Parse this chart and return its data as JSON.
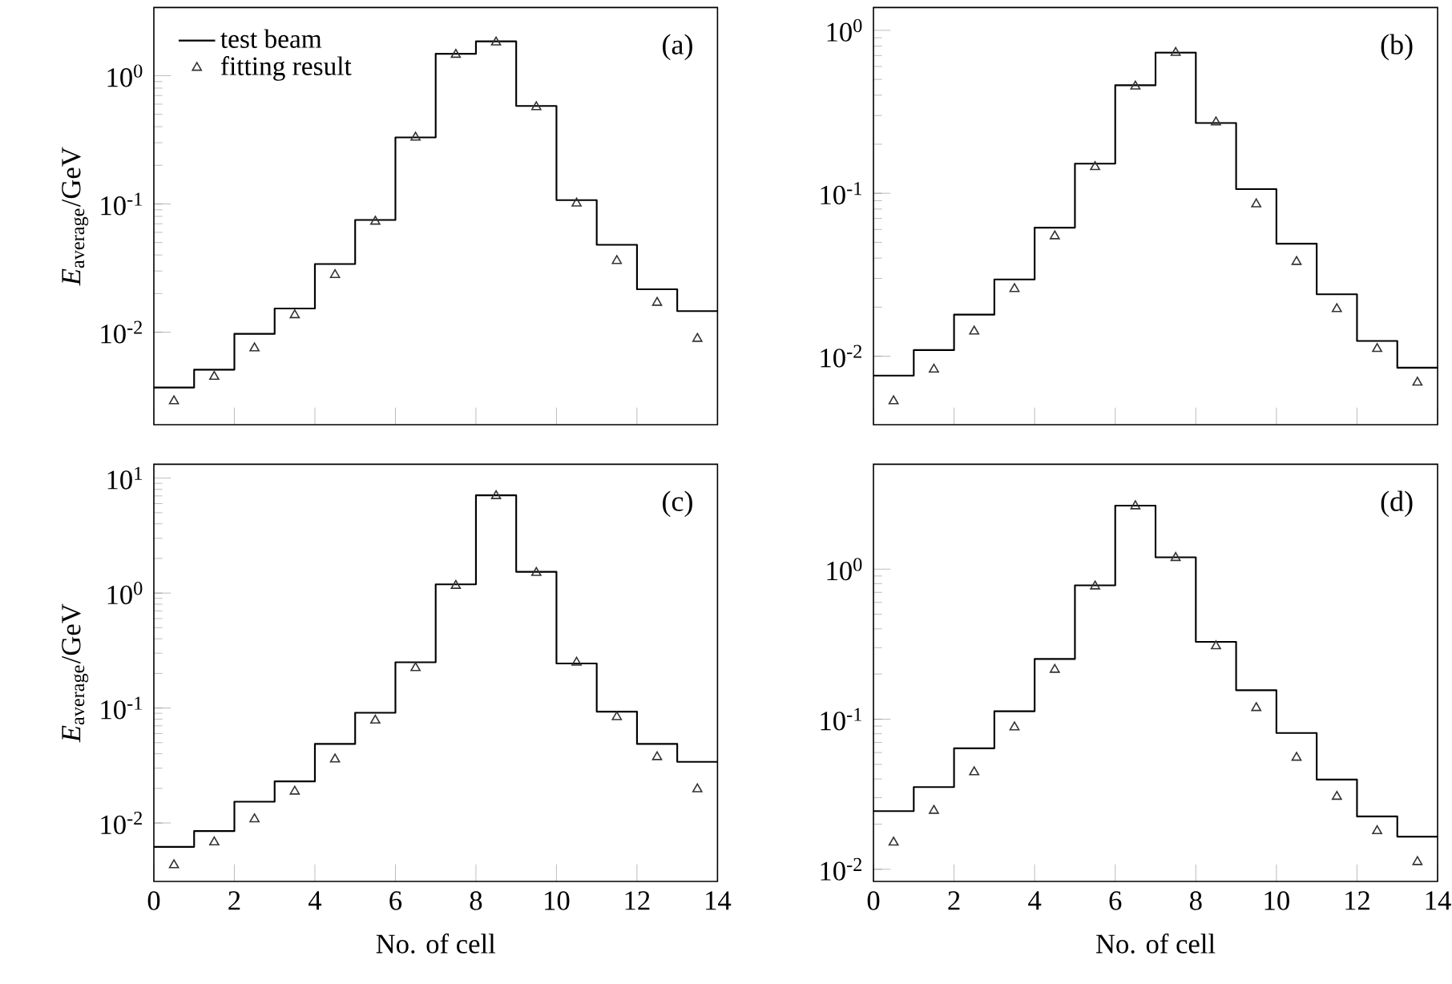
{
  "chart_data": [
    {
      "type": "histogram",
      "ylabel": "*E*$_{average}$/GeV",
      "annotations": [
        "(a)"
      ],
      "log": "y",
      "legend": "top left",
      "tick_labels": "y",
      "bins": [
        0,
        1,
        2,
        3,
        4,
        5,
        6,
        7,
        8,
        9,
        10,
        11,
        12,
        13,
        14
      ],
      "xlim": [
        0,
        14
      ],
      "xticks": [
        0,
        2,
        4,
        6,
        8,
        10,
        12,
        14
      ],
      "ylim": [
        0.0019,
        3.4
      ],
      "yticks": [
        {
          "value": 0.01,
          "label": "10$^{-2}$"
        },
        {
          "value": 0.1,
          "label": "10$^{-1}$"
        },
        {
          "value": 1,
          "label": "10$^{0}$"
        }
      ],
      "series": [
        {
          "name": "test beam",
          "color": "#000000",
          "values": [
            0.0037,
            0.0051,
            0.0097,
            0.0153,
            0.034,
            0.075,
            0.33,
            1.48,
            1.85,
            0.58,
            0.107,
            0.048,
            0.0216,
            0.0146
          ]
        },
        {
          "name": "fitting result",
          "type": "scatter",
          "marker": "triangle",
          "color": "#333333",
          "x": [
            0.5,
            1.5,
            2.5,
            3.5,
            4.5,
            5.5,
            6.5,
            7.5,
            8.5,
            9.5,
            10.5,
            11.5,
            12.5,
            13.5
          ],
          "values": [
            0.0029,
            0.0045,
            0.0075,
            0.0136,
            0.028,
            0.073,
            0.33,
            1.46,
            1.82,
            0.57,
            0.101,
            0.036,
            0.017,
            0.0089
          ]
        }
      ]
    },
    {
      "type": "histogram",
      "annotations": [
        "(b)"
      ],
      "log": "y",
      "tick_labels": "y",
      "bins": [
        0,
        1,
        2,
        3,
        4,
        5,
        6,
        7,
        8,
        9,
        10,
        11,
        12,
        13,
        14
      ],
      "xlim": [
        0,
        14
      ],
      "xticks": [
        0,
        2,
        4,
        6,
        8,
        10,
        12,
        14
      ],
      "ylim": [
        0.0038,
        1.38
      ],
      "yticks": [
        {
          "value": 0.01,
          "label": "10$^{-2}$"
        },
        {
          "value": 0.1,
          "label": "10$^{-1}$"
        },
        {
          "value": 1,
          "label": "10$^{0}$"
        }
      ],
      "series": [
        {
          "color": "#000000",
          "values": [
            0.0076,
            0.0109,
            0.018,
            0.0296,
            0.0615,
            0.152,
            0.46,
            0.73,
            0.27,
            0.106,
            0.049,
            0.024,
            0.0124,
            0.0085
          ]
        },
        {
          "type": "scatter",
          "marker": "triangle",
          "color": "#333333",
          "x": [
            0.5,
            1.5,
            2.5,
            3.5,
            4.5,
            5.5,
            6.5,
            7.5,
            8.5,
            9.5,
            10.5,
            11.5,
            12.5,
            13.5
          ],
          "values": [
            0.0053,
            0.0083,
            0.0142,
            0.0259,
            0.0546,
            0.145,
            0.453,
            0.729,
            0.273,
            0.0857,
            0.038,
            0.0195,
            0.0111,
            0.0069
          ]
        }
      ]
    },
    {
      "type": "histogram",
      "xlabel": "No. of cell",
      "ylabel": "*E*$_{average}$/GeV",
      "annotations": [
        "(c)"
      ],
      "log": "y",
      "bins": [
        0,
        1,
        2,
        3,
        4,
        5,
        6,
        7,
        8,
        9,
        10,
        11,
        12,
        13,
        14
      ],
      "xlim": [
        0,
        14
      ],
      "xticks": [
        0,
        2,
        4,
        6,
        8,
        10,
        12,
        14
      ],
      "ylim": [
        0.0031,
        13.2
      ],
      "yticks": [
        {
          "value": 0.01,
          "label": "10$^{-2}$"
        },
        {
          "value": 0.1,
          "label": "10$^{-1}$"
        },
        {
          "value": 1,
          "label": "10$^{0}$"
        },
        {
          "value": 10,
          "label": "10$^{1}$"
        }
      ],
      "series": [
        {
          "color": "#000000",
          "values": [
            0.0062,
            0.0085,
            0.0153,
            0.023,
            0.0487,
            0.091,
            0.25,
            1.19,
            7.08,
            1.53,
            0.244,
            0.093,
            0.0487,
            0.034
          ]
        },
        {
          "type": "scatter",
          "marker": "triangle",
          "color": "#333333",
          "x": [
            0.5,
            1.5,
            2.5,
            3.5,
            4.5,
            5.5,
            6.5,
            7.5,
            8.5,
            9.5,
            10.5,
            11.5,
            12.5,
            13.5
          ],
          "values": [
            0.0043,
            0.0068,
            0.0108,
            0.0188,
            0.0358,
            0.078,
            0.223,
            1.16,
            7.0,
            1.5,
            0.249,
            0.0836,
            0.0375,
            0.0197
          ]
        }
      ]
    },
    {
      "type": "histogram",
      "xlabel": "No. of cell",
      "annotations": [
        "(d)"
      ],
      "log": "y",
      "bins": [
        0,
        1,
        2,
        3,
        4,
        5,
        6,
        7,
        8,
        9,
        10,
        11,
        12,
        13,
        14
      ],
      "xlim": [
        0,
        14
      ],
      "xticks": [
        0,
        2,
        4,
        6,
        8,
        10,
        12,
        14
      ],
      "ylim": [
        0.0083,
        5.0
      ],
      "yticks": [
        {
          "value": 0.01,
          "label": "10$^{-2}$"
        },
        {
          "value": 0.1,
          "label": "10$^{-1}$"
        },
        {
          "value": 1,
          "label": "10$^{0}$"
        }
      ],
      "series": [
        {
          "color": "#000000",
          "values": [
            0.0244,
            0.0353,
            0.064,
            0.113,
            0.252,
            0.78,
            2.65,
            1.2,
            0.328,
            0.156,
            0.081,
            0.0396,
            0.0225,
            0.0165
          ]
        },
        {
          "type": "scatter",
          "marker": "triangle",
          "color": "#333333",
          "x": [
            0.5,
            1.5,
            2.5,
            3.5,
            4.5,
            5.5,
            6.5,
            7.5,
            8.5,
            9.5,
            10.5,
            11.5,
            12.5,
            13.5
          ],
          "values": [
            0.0151,
            0.0246,
            0.0444,
            0.0885,
            0.214,
            0.769,
            2.63,
            1.19,
            0.307,
            0.119,
            0.0555,
            0.0305,
            0.018,
            0.0112
          ]
        }
      ]
    }
  ]
}
